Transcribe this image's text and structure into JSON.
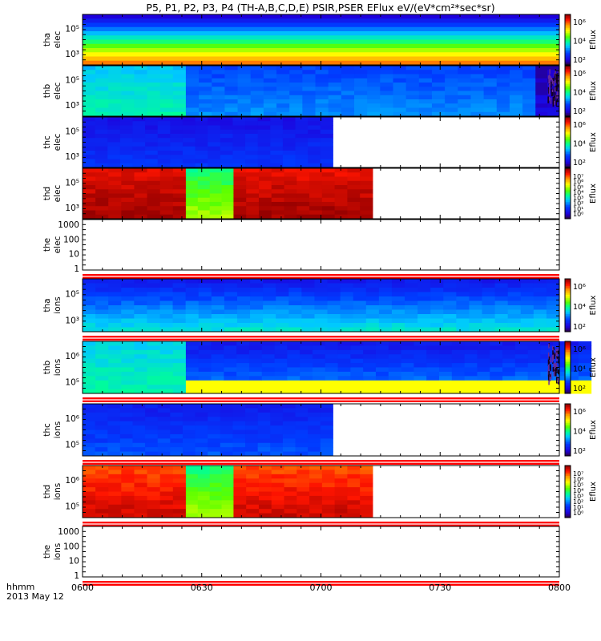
{
  "chart_data": {
    "type": "heatmap",
    "title": "P5, P1, P2, P3, P4 (TH-A,B,C,D,E) PSIR,PSER EFlux eV/(eV*cm²*sec*sr)",
    "x_axis": {
      "ticks": [
        "0600",
        "0630",
        "0700",
        "0730",
        "0800"
      ],
      "corner_label_1": "hhmm",
      "corner_label_2": "2013 May 12",
      "range": [
        "0600",
        "0800"
      ]
    },
    "colorbar_label": "Eflux",
    "panels": [
      {
        "id": "tha-elec",
        "label_1": "tha",
        "label_2": "elec",
        "data_end": "0800",
        "y_ticks": [
          "10⁵",
          "10³"
        ],
        "colorbar_ticks": [
          "10⁶",
          "10⁴",
          "10²"
        ],
        "top_low": 0.08,
        "bottom_high": 0.82,
        "left_shift": 0.0,
        "hot_tail": false,
        "noise_tail": false,
        "red_rule": false
      },
      {
        "id": "thb-elec",
        "label_1": "thb",
        "label_2": "elec",
        "data_end": "0800",
        "y_ticks": [
          "10⁵",
          "10³"
        ],
        "colorbar_ticks": [
          "10⁶",
          "10⁴",
          "10²"
        ],
        "segments": [
          {
            "from": "0600",
            "to": "0626",
            "low": 0.36,
            "high": 0.44
          },
          {
            "from": "0626",
            "to": "0754",
            "low": 0.22,
            "high": 0.3
          },
          {
            "from": "0754",
            "to": "0800",
            "low": 0.05,
            "high": 0.1
          }
        ],
        "noise_tail": true,
        "red_rule": false
      },
      {
        "id": "thc-elec",
        "label_1": "thc",
        "label_2": "elec",
        "data_end": "0703",
        "y_ticks": [
          "10⁵",
          "10³"
        ],
        "colorbar_ticks": [
          "10⁶",
          "10⁴",
          "10²"
        ],
        "segments": [
          {
            "from": "0600",
            "to": "0703",
            "low": 0.12,
            "high": 0.2
          }
        ],
        "noise_tail": false,
        "red_rule": false
      },
      {
        "id": "thd-elec",
        "label_1": "thd",
        "label_2": "elec",
        "data_end": "0713",
        "y_ticks": [
          "10⁵",
          "10³"
        ],
        "colorbar_ticks": [
          "10⁷",
          "10⁶",
          "10⁵",
          "10⁴",
          "10³",
          "10²",
          "10¹",
          "10⁰"
        ],
        "segments": [
          {
            "from": "0600",
            "to": "0626",
            "low": 0.93,
            "high": 0.99
          },
          {
            "from": "0626",
            "to": "0638",
            "low": 0.48,
            "high": 0.62
          },
          {
            "from": "0638",
            "to": "0713",
            "low": 0.92,
            "high": 0.99
          }
        ],
        "noise_tail": false,
        "red_rule": false
      },
      {
        "id": "the-elec",
        "label_1": "the",
        "label_2": "elec",
        "data_end": "0600",
        "y_ticks": [
          "1000",
          "100",
          "10",
          "1"
        ],
        "colorbar_ticks": [],
        "noise_tail": false,
        "red_rule": true
      },
      {
        "id": "tha-ions",
        "label_1": "tha",
        "label_2": "ions",
        "data_end": "0800",
        "y_ticks": [
          "10⁵",
          "10³"
        ],
        "colorbar_ticks": [
          "10⁶",
          "10⁴",
          "10²"
        ],
        "segments": [
          {
            "from": "0600",
            "to": "0800",
            "low": 0.14,
            "high": 0.4
          }
        ],
        "noise_tail": false,
        "red_rule": true
      },
      {
        "id": "thb-ions",
        "label_1": "thb",
        "label_2": "ions",
        "data_end": "0800",
        "y_ticks": [
          "10⁶",
          "10⁵"
        ],
        "colorbar_ticks": [
          "10⁶",
          "10⁴",
          "10²"
        ],
        "segments": [
          {
            "from": "0600",
            "to": "0626",
            "low": 0.38,
            "high": 0.44
          },
          {
            "from": "0626",
            "to": "0768",
            "low": 0.14,
            "high": 0.3,
            "band_low_value": 0.68
          },
          {
            "from": "0768",
            "to": "0800",
            "low": 0.05,
            "high": 0.55
          }
        ],
        "noise_tail": true,
        "red_rule": true
      },
      {
        "id": "thc-ions",
        "label_1": "thc",
        "label_2": "ions",
        "data_end": "0703",
        "y_ticks": [
          "10⁶",
          "10⁵"
        ],
        "colorbar_ticks": [
          "10⁶",
          "10⁴",
          "10²"
        ],
        "segments": [
          {
            "from": "0600",
            "to": "0703",
            "low": 0.15,
            "high": 0.24
          }
        ],
        "noise_tail": false,
        "red_rule": true
      },
      {
        "id": "thd-ions",
        "label_1": "thd",
        "label_2": "ions",
        "data_end": "0713",
        "y_ticks": [
          "10⁶",
          "10⁵"
        ],
        "colorbar_ticks": [
          "10⁷",
          "10⁶",
          "10⁵",
          "10⁴",
          "10³",
          "10²",
          "10¹",
          "10⁰"
        ],
        "segments": [
          {
            "from": "0600",
            "to": "0626",
            "low": 0.86,
            "high": 0.95
          },
          {
            "from": "0626",
            "to": "0638",
            "low": 0.48,
            "high": 0.62
          },
          {
            "from": "0638",
            "to": "0713",
            "low": 0.86,
            "high": 0.95
          }
        ],
        "noise_tail": false,
        "red_rule": true
      },
      {
        "id": "the-ions",
        "label_1": "the",
        "label_2": "ions",
        "data_end": "0600",
        "y_ticks": [
          "1000",
          "100",
          "10",
          "1"
        ],
        "colorbar_ticks": [],
        "noise_tail": false,
        "red_rule": true
      }
    ]
  }
}
